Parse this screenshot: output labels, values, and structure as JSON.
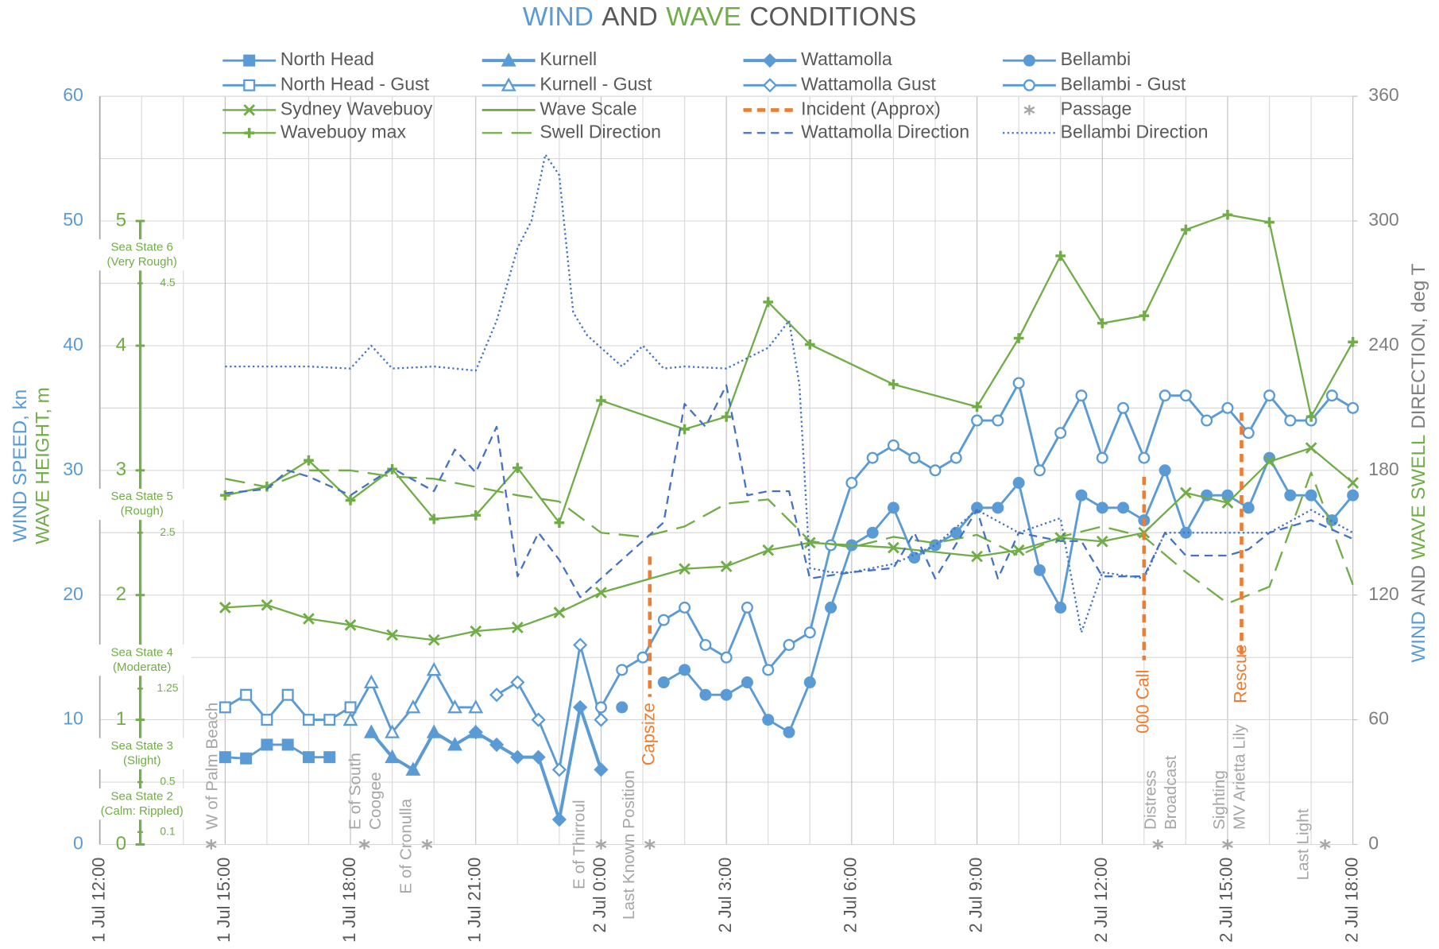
{
  "chart_data": {
    "type": "line",
    "title": [
      {
        "text": "WIND",
        "color": "#5b9bd5"
      },
      {
        "text": "AND",
        "color": "#595959"
      },
      {
        "text": "WAVE",
        "color": "#70ad47"
      },
      {
        "text": "CONDITIONS",
        "color": "#595959"
      }
    ],
    "ylabel": [
      {
        "text": "WIND SPEED, kn",
        "color": "#5b9bd5"
      },
      {
        "text": "WAVE HEIGHT, m",
        "color": "#70ad47"
      }
    ],
    "y2label": [
      {
        "text": "WIND",
        "color": "#5b9bd5"
      },
      {
        "text": "AND",
        "color": "#7f7f7f"
      },
      {
        "text": "WAVE SWELL",
        "color": "#70ad47"
      },
      {
        "text": "DIRECTION, deg T",
        "color": "#7f7f7f"
      }
    ],
    "xlim": [
      "1 Jul 12:00",
      "2 Jul 18:00"
    ],
    "xticks": [
      "1 Jul 12:00",
      "1 Jul 15:00",
      "1 Jul 18:00",
      "1 Jul 21:00",
      "2 Jul 0:00",
      "2 Jul 3:00",
      "2 Jul 6:00",
      "2 Jul 9:00",
      "2 Jul 12:00",
      "2 Jul 15:00",
      "2 Jul 18:00"
    ],
    "x_grid_step_hours": 1,
    "ylim": [
      0,
      60
    ],
    "yticks": [
      0,
      10,
      20,
      30,
      40,
      50,
      60
    ],
    "yminor": [
      5,
      15,
      25,
      35,
      45,
      55
    ],
    "y2lim": [
      0,
      360
    ],
    "y2ticks": [
      0,
      60,
      120,
      180,
      240,
      300,
      360
    ],
    "grid": true,
    "series": [
      {
        "name": "North Head",
        "color": "#5b9bd5",
        "marker": "square",
        "filled": true,
        "width": 2.5,
        "axis": "y",
        "x": [
          "1 Jul 15:00",
          "1 Jul 15:30",
          "1 Jul 16:00",
          "1 Jul 16:30",
          "1 Jul 17:00",
          "1 Jul 17:30"
        ],
        "values": [
          7,
          6.9,
          8,
          8,
          7,
          7
        ]
      },
      {
        "name": "Kurnell",
        "color": "#5b9bd5",
        "marker": "triangle",
        "filled": true,
        "width": 3.5,
        "axis": "y",
        "x": [
          "1 Jul 18:30",
          "1 Jul 19:00",
          "1 Jul 19:30",
          "1 Jul 20:00",
          "1 Jul 20:30",
          "1 Jul 21:00"
        ],
        "values": [
          9,
          7,
          6,
          9,
          8,
          9
        ]
      },
      {
        "name": "Wattamolla",
        "color": "#5b9bd5",
        "marker": "diamond",
        "filled": true,
        "width": 3.5,
        "axis": "y",
        "x": [
          "1 Jul 21:00",
          "1 Jul 21:30",
          "1 Jul 22:00",
          "1 Jul 22:30",
          "1 Jul 23:00",
          "1 Jul 23:30",
          "2 Jul 0:00"
        ],
        "values": [
          9,
          8,
          7,
          7,
          2,
          11,
          6
        ]
      },
      {
        "name": "Bellambi",
        "color": "#5b9bd5",
        "marker": "circle",
        "filled": true,
        "width": 2.5,
        "axis": "y",
        "x": [
          "2 Jul 0:30",
          "2 Jul 1:00",
          "2 Jul 1:30",
          "2 Jul 2:00",
          "2 Jul 2:30",
          "2 Jul 3:00",
          "2 Jul 3:30",
          "2 Jul 4:00",
          "2 Jul 4:30",
          "2 Jul 5:00",
          "2 Jul 5:30",
          "2 Jul 6:00",
          "2 Jul 6:30",
          "2 Jul 7:00",
          "2 Jul 7:30",
          "2 Jul 8:00",
          "2 Jul 8:30",
          "2 Jul 9:00",
          "2 Jul 9:30",
          "2 Jul 10:00",
          "2 Jul 10:30",
          "2 Jul 11:00",
          "2 Jul 11:30",
          "2 Jul 12:00",
          "2 Jul 12:30",
          "2 Jul 13:00",
          "2 Jul 13:30",
          "2 Jul 14:00",
          "2 Jul 14:30",
          "2 Jul 15:00",
          "2 Jul 15:30",
          "2 Jul 16:00",
          "2 Jul 16:30",
          "2 Jul 17:00",
          "2 Jul 17:30",
          "2 Jul 18:00"
        ],
        "values": [
          11,
          null,
          13,
          14,
          12,
          12,
          13,
          10,
          9,
          13,
          19,
          24,
          25,
          27,
          23,
          24,
          25,
          27,
          27,
          29,
          22,
          19,
          28,
          27,
          27,
          26,
          30,
          25,
          28,
          28,
          27,
          31,
          28,
          28,
          26,
          28
        ]
      },
      {
        "name": "North Head - Gust",
        "color": "#5b9bd5",
        "marker": "square",
        "filled": false,
        "width": 2.5,
        "axis": "y",
        "x": [
          "1 Jul 15:00",
          "1 Jul 15:30",
          "1 Jul 16:00",
          "1 Jul 16:30",
          "1 Jul 17:00",
          "1 Jul 17:30",
          "1 Jul 18:00"
        ],
        "values": [
          11,
          12,
          10,
          12,
          10,
          10,
          11
        ]
      },
      {
        "name": "Kurnell - Gust",
        "color": "#5b9bd5",
        "marker": "triangle",
        "filled": false,
        "width": 2.5,
        "axis": "y",
        "x": [
          "1 Jul 18:00",
          "1 Jul 18:30",
          "1 Jul 19:00",
          "1 Jul 19:30",
          "1 Jul 20:00",
          "1 Jul 20:30",
          "1 Jul 21:00"
        ],
        "values": [
          10,
          13,
          9,
          11,
          14,
          11,
          11
        ]
      },
      {
        "name": "Wattamolla Gust",
        "color": "#5b9bd5",
        "marker": "diamond",
        "filled": false,
        "width": 2.5,
        "axis": "y",
        "x": [
          "1 Jul 21:30",
          "1 Jul 22:00",
          "1 Jul 22:30",
          "1 Jul 23:00",
          "1 Jul 23:30",
          "2 Jul 0:00"
        ],
        "values": [
          12,
          13,
          10,
          6,
          16,
          10
        ]
      },
      {
        "name": "Bellambi - Gust",
        "color": "#5b9bd5",
        "marker": "circle",
        "filled": false,
        "width": 2.5,
        "axis": "y",
        "x": [
          "2 Jul 0:00",
          "2 Jul 0:30",
          "2 Jul 1:00",
          "2 Jul 1:30",
          "2 Jul 2:00",
          "2 Jul 2:30",
          "2 Jul 3:00",
          "2 Jul 3:30",
          "2 Jul 4:00",
          "2 Jul 4:30",
          "2 Jul 5:00",
          "2 Jul 5:30",
          "2 Jul 6:00",
          "2 Jul 6:30",
          "2 Jul 7:00",
          "2 Jul 7:30",
          "2 Jul 8:00",
          "2 Jul 8:30",
          "2 Jul 9:00",
          "2 Jul 9:30",
          "2 Jul 10:00",
          "2 Jul 10:30",
          "2 Jul 11:00",
          "2 Jul 11:30",
          "2 Jul 12:00",
          "2 Jul 12:30",
          "2 Jul 13:00",
          "2 Jul 13:30",
          "2 Jul 14:00",
          "2 Jul 14:30",
          "2 Jul 15:00",
          "2 Jul 15:30",
          "2 Jul 16:00",
          "2 Jul 16:30",
          "2 Jul 17:00",
          "2 Jul 17:30",
          "2 Jul 18:00"
        ],
        "values": [
          11,
          14,
          15,
          18,
          19,
          16,
          15,
          19,
          14,
          16,
          17,
          24,
          29,
          31,
          32,
          31,
          30,
          31,
          34,
          34,
          37,
          30,
          33,
          36,
          31,
          35,
          31,
          36,
          36,
          34,
          35,
          33,
          36,
          34,
          34,
          36,
          35
        ]
      },
      {
        "name": "Sydney Wavebuoy",
        "color": "#70ad47",
        "marker": "x",
        "filled": true,
        "width": 2,
        "axis": "wave",
        "x": [
          "1 Jul 15:00",
          "1 Jul 16:00",
          "1 Jul 17:00",
          "1 Jul 18:00",
          "1 Jul 19:00",
          "1 Jul 20:00",
          "1 Jul 21:00",
          "1 Jul 22:00",
          "1 Jul 23:00",
          "2 Jul 0:00",
          "2 Jul 2:00",
          "2 Jul 3:00",
          "2 Jul 4:00",
          "2 Jul 5:00",
          "2 Jul 7:00",
          "2 Jul 9:00",
          "2 Jul 10:00",
          "2 Jul 11:00",
          "2 Jul 12:00",
          "2 Jul 13:00",
          "2 Jul 14:00",
          "2 Jul 15:00",
          "2 Jul 16:00",
          "2 Jul 17:00",
          "2 Jul 18:00"
        ],
        "values": [
          1.9,
          1.92,
          1.81,
          1.76,
          1.68,
          1.64,
          1.71,
          1.74,
          1.86,
          2.02,
          2.21,
          2.23,
          2.36,
          2.42,
          2.38,
          2.31,
          2.36,
          2.46,
          2.43,
          2.5,
          2.82,
          2.74,
          3.07,
          3.18,
          2.9
        ]
      },
      {
        "name": "Wave Scale",
        "color": "#70ad47",
        "lim": [
          0,
          6
        ],
        "ticks": [
          0,
          1,
          2,
          3,
          4,
          5
        ],
        "minor_ticks": [
          0.1,
          0.5,
          1.25,
          2.5,
          4.5
        ],
        "sea_states": [
          {
            "name": "Sea State 6",
            "desc": "(Very Rough)"
          },
          {
            "name": "Sea State 5",
            "desc": "(Rough)"
          },
          {
            "name": "Sea State 4",
            "desc": "(Moderate)"
          },
          {
            "name": "Sea State 3",
            "desc": "(Slight)"
          },
          {
            "name": "Sea State 2",
            "desc": "(Calm: Rippled)"
          }
        ]
      },
      {
        "name": "Incident (Approx)",
        "color": "#ed7d31",
        "dash": "dash",
        "width": 4,
        "events": [
          {
            "label": "Capsize",
            "x": "2 Jul 1:10"
          },
          {
            "label": "000 Call",
            "x": "2 Jul 13:00"
          },
          {
            "label": "Rescue",
            "x": "2 Jul 15:20"
          }
        ]
      },
      {
        "name": "Passage",
        "color": "#a6a6a6",
        "marker": "asterisk",
        "events": [
          {
            "lines": [
              "W of Palm Beach"
            ],
            "x": "1 Jul 14:40"
          },
          {
            "lines": [
              "E of South",
              "Coogee"
            ],
            "x": "1 Jul 18:20"
          },
          {
            "lines": [
              "E of Cronulla"
            ],
            "x": "1 Jul 19:50"
          },
          {
            "lines": [
              "E of Thirroul"
            ],
            "x": "2 Jul 0:00"
          },
          {
            "lines": [
              "Last Known Position"
            ],
            "x": "2 Jul 1:10"
          },
          {
            "lines": [
              "Distress",
              "Broadcast"
            ],
            "x": "2 Jul 13:20"
          },
          {
            "lines": [
              "Sighting",
              "MV Arietta Lily"
            ],
            "x": "2 Jul 15:00"
          },
          {
            "lines": [
              "Last Light"
            ],
            "x": "2 Jul 17:20"
          }
        ]
      },
      {
        "name": "Wavebuoy max",
        "color": "#70ad47",
        "marker": "plus",
        "filled": true,
        "width": 2,
        "axis": "wave",
        "x": [
          "1 Jul 15:00",
          "1 Jul 16:00",
          "1 Jul 17:00",
          "1 Jul 18:00",
          "1 Jul 19:00",
          "1 Jul 20:00",
          "1 Jul 21:00",
          "1 Jul 22:00",
          "1 Jul 23:00",
          "2 Jul 0:00",
          "2 Jul 2:00",
          "2 Jul 3:00",
          "2 Jul 4:00",
          "2 Jul 5:00",
          "2 Jul 7:00",
          "2 Jul 9:00",
          "2 Jul 10:00",
          "2 Jul 11:00",
          "2 Jul 12:00",
          "2 Jul 13:00",
          "2 Jul 14:00",
          "2 Jul 15:00",
          "2 Jul 16:00",
          "2 Jul 17:00",
          "2 Jul 18:00"
        ],
        "values": [
          2.8,
          2.87,
          3.08,
          2.76,
          3.01,
          2.61,
          2.64,
          3.02,
          2.58,
          3.56,
          3.33,
          3.43,
          4.35,
          4.01,
          3.69,
          3.51,
          4.06,
          4.72,
          4.18,
          4.24,
          4.93,
          5.05,
          4.99,
          3.43,
          4.03
        ]
      },
      {
        "name": "Swell Direction",
        "color": "#70ad47",
        "dash": "longdash",
        "width": 2,
        "axis": "y2",
        "x": [
          "1 Jul 15:00",
          "1 Jul 16:00",
          "1 Jul 17:00",
          "1 Jul 18:00",
          "1 Jul 19:00",
          "1 Jul 20:00",
          "1 Jul 21:00",
          "1 Jul 22:00",
          "1 Jul 23:00",
          "2 Jul 0:00",
          "2 Jul 1:00",
          "2 Jul 2:00",
          "2 Jul 3:00",
          "2 Jul 4:00",
          "2 Jul 5:00",
          "2 Jul 6:00",
          "2 Jul 7:00",
          "2 Jul 8:00",
          "2 Jul 9:00",
          "2 Jul 10:00",
          "2 Jul 11:00",
          "2 Jul 12:00",
          "2 Jul 13:00",
          "2 Jul 14:00",
          "2 Jul 15:00",
          "2 Jul 16:00",
          "2 Jul 17:00",
          "2 Jul 18:00"
        ],
        "values": [
          176,
          172,
          180,
          180,
          177,
          176,
          172,
          168,
          165,
          150,
          148,
          153,
          164,
          166,
          146,
          143,
          148,
          145,
          149,
          139,
          148,
          153,
          148,
          131,
          116,
          124,
          179,
          125
        ]
      },
      {
        "name": "Wattamolla Direction",
        "color": "#4472c4",
        "dash": "dash",
        "width": 2,
        "axis": "y2",
        "x": [
          "1 Jul 15:00",
          "1 Jul 16:00",
          "1 Jul 16:30",
          "1 Jul 17:00",
          "1 Jul 18:00",
          "1 Jul 19:00",
          "1 Jul 20:00",
          "1 Jul 20:30",
          "1 Jul 21:00",
          "1 Jul 21:30",
          "1 Jul 22:00",
          "1 Jul 22:30",
          "1 Jul 23:00",
          "1 Jul 23:30",
          "2 Jul 0:00",
          "2 Jul 1:00",
          "2 Jul 1:30",
          "2 Jul 2:00",
          "2 Jul 2:30",
          "2 Jul 3:00",
          "2 Jul 3:30",
          "2 Jul 4:00",
          "2 Jul 4:30",
          "2 Jul 5:00",
          "2 Jul 6:00",
          "2 Jul 7:00",
          "2 Jul 7:30",
          "2 Jul 8:00",
          "2 Jul 9:00",
          "2 Jul 9:30",
          "2 Jul 10:00",
          "2 Jul 11:00",
          "2 Jul 11:30",
          "2 Jul 12:00",
          "2 Jul 13:00",
          "2 Jul 13:30",
          "2 Jul 14:00",
          "2 Jul 15:00",
          "2 Jul 15:30",
          "2 Jul 16:00",
          "2 Jul 17:00",
          "2 Jul 18:00"
        ],
        "values": [
          169,
          171,
          180,
          177,
          168,
          181,
          170,
          190,
          179,
          201,
          129,
          150,
          137,
          119,
          128,
          146,
          155,
          212,
          201,
          221,
          168,
          170,
          170,
          128,
          131,
          133,
          150,
          128,
          161,
          128,
          150,
          146,
          146,
          129,
          129,
          150,
          139,
          139,
          142,
          150,
          156,
          147
        ]
      },
      {
        "name": "Bellambi Direction",
        "color": "#4472c4",
        "dash": "dot",
        "width": 2,
        "axis": "y2",
        "x": [
          "1 Jul 15:00",
          "1 Jul 16:00",
          "1 Jul 17:00",
          "1 Jul 18:00",
          "1 Jul 18:30",
          "1 Jul 19:00",
          "1 Jul 20:00",
          "1 Jul 21:00",
          "1 Jul 21:30",
          "1 Jul 22:00",
          "1 Jul 22:20",
          "1 Jul 22:40",
          "1 Jul 23:00",
          "1 Jul 23:20",
          "1 Jul 23:40",
          "2 Jul 0:00",
          "2 Jul 0:30",
          "2 Jul 1:00",
          "2 Jul 1:30",
          "2 Jul 2:00",
          "2 Jul 3:00",
          "2 Jul 4:00",
          "2 Jul 4:30",
          "2 Jul 4:45",
          "2 Jul 5:00",
          "2 Jul 5:30",
          "2 Jul 6:00",
          "2 Jul 7:00",
          "2 Jul 8:00",
          "2 Jul 9:00",
          "2 Jul 10:00",
          "2 Jul 11:00",
          "2 Jul 11:30",
          "2 Jul 12:00",
          "2 Jul 13:00",
          "2 Jul 13:30",
          "2 Jul 14:00",
          "2 Jul 15:00",
          "2 Jul 16:00",
          "2 Jul 17:00",
          "2 Jul 18:00"
        ],
        "values": [
          230,
          230,
          230,
          229,
          240,
          229,
          230,
          228,
          252,
          287,
          300,
          332,
          322,
          256,
          245,
          239,
          230,
          240,
          229,
          230,
          229,
          239,
          252,
          221,
          133,
          131,
          131,
          135,
          144,
          161,
          150,
          157,
          102,
          131,
          128,
          150,
          150,
          150,
          150,
          161,
          150
        ]
      }
    ]
  }
}
